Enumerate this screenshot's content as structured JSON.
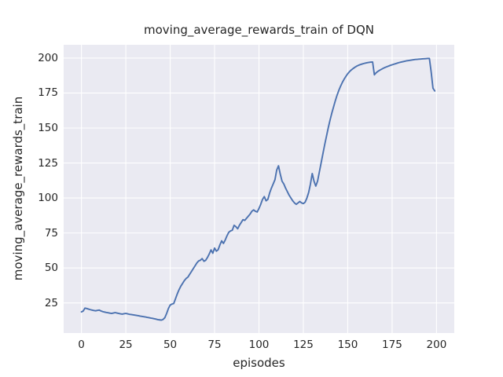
{
  "figure": {
    "background": "#ffffff",
    "axes_background": "#eaeaf2",
    "grid_color": "#ffffff",
    "text_color": "#262626"
  },
  "chart_data": {
    "type": "line",
    "title": "moving_average_rewards_train of DQN",
    "xlabel": "episodes",
    "ylabel": "moving_average_rewards_train",
    "grid": true,
    "legend_position": "none",
    "line_color": "#4c72b0",
    "x_ticks": [
      0,
      25,
      50,
      75,
      100,
      125,
      150,
      175,
      200
    ],
    "y_ticks": [
      25,
      50,
      75,
      100,
      125,
      150,
      175,
      200
    ],
    "xlim": [
      -10,
      210
    ],
    "ylim": [
      3.5,
      209.5
    ],
    "series": [
      {
        "name": "moving_average_rewards_train",
        "x_start": 0,
        "x_step": 1,
        "values": [
          18.6,
          19.2,
          21.3,
          21.0,
          20.6,
          20.2,
          19.9,
          19.6,
          19.4,
          19.7,
          19.9,
          19.3,
          18.8,
          18.5,
          18.2,
          18.0,
          17.7,
          17.5,
          17.8,
          18.1,
          17.8,
          17.5,
          17.2,
          17.0,
          17.3,
          17.5,
          17.2,
          16.9,
          16.7,
          16.5,
          16.3,
          16.1,
          15.9,
          15.6,
          15.4,
          15.2,
          15.0,
          14.7,
          14.5,
          14.2,
          14.0,
          13.7,
          13.4,
          13.1,
          12.9,
          12.7,
          13.2,
          14.5,
          17.5,
          21.0,
          23.5,
          24.2,
          24.6,
          28.0,
          31.5,
          34.5,
          37.0,
          39.0,
          41.0,
          42.5,
          43.5,
          45.5,
          47.5,
          49.5,
          51.5,
          53.5,
          55.0,
          55.5,
          56.7,
          54.8,
          55.5,
          57.5,
          60.0,
          62.9,
          60.5,
          64.2,
          62.0,
          63.0,
          66.5,
          69.4,
          67.5,
          70.0,
          73.0,
          75.5,
          76.5,
          77.0,
          80.5,
          79.5,
          78.0,
          80.5,
          82.5,
          84.5,
          84.0,
          85.5,
          87.0,
          88.5,
          90.5,
          91.5,
          90.5,
          90.0,
          92.5,
          95.5,
          99.0,
          101.0,
          98.0,
          99.0,
          103.5,
          107.0,
          110.0,
          113.0,
          120.0,
          123.0,
          117.0,
          112.0,
          110.0,
          107.0,
          104.5,
          102.0,
          100.0,
          98.0,
          96.5,
          95.5,
          96.5,
          97.5,
          96.5,
          96.0,
          97.0,
          100.0,
          104.0,
          110.0,
          117.5,
          112.0,
          108.5,
          112.0,
          118.5,
          125.0,
          131.5,
          138.0,
          144.0,
          150.0,
          155.5,
          160.5,
          165.0,
          169.5,
          173.5,
          177.0,
          180.0,
          182.7,
          185.0,
          187.0,
          188.8,
          190.3,
          191.5,
          192.5,
          193.4,
          194.2,
          194.8,
          195.3,
          195.7,
          196.1,
          196.4,
          196.7,
          196.9,
          197.1,
          197.2,
          188.0,
          189.5,
          190.5,
          191.3,
          192.0,
          192.7,
          193.3,
          193.8,
          194.3,
          194.8,
          195.2,
          195.6,
          196.0,
          196.4,
          196.8,
          197.1,
          197.4,
          197.7,
          198.0,
          198.2,
          198.4,
          198.6,
          198.8,
          199.0,
          199.1,
          199.2,
          199.3,
          199.4,
          199.5,
          199.6,
          199.7,
          199.7,
          190.0,
          178.5,
          176.5
        ]
      }
    ]
  }
}
